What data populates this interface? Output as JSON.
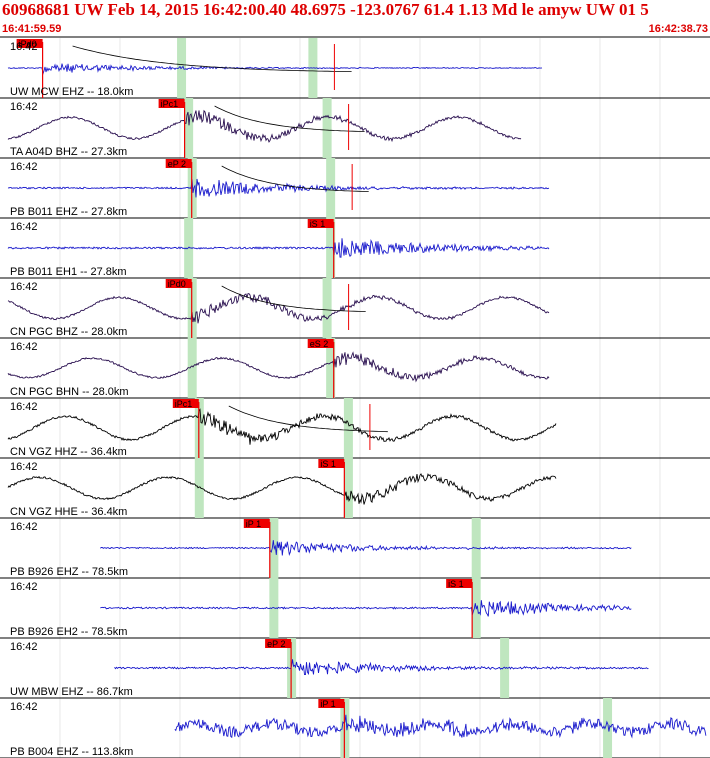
{
  "header": {
    "title": "60968681 UW Feb 14, 2015 16:42:00.40   48.6975 -123.0767 61.4 1.13 Md le amyw UW 01   5",
    "time_start": "16:41:59.59",
    "time_end": "16:42:38.73"
  },
  "colors": {
    "header_text": "#dd0000",
    "pick_box": "#ee0000",
    "pick_band": "#bfe6bf",
    "coda_line": "#000000"
  },
  "traces": [
    {
      "time_label": "16:42",
      "station": "UW MCW EHZ -- 18.0km",
      "pick_label": "iPd0",
      "color": "#1a1acc",
      "amp": 0.18,
      "style": "burst",
      "pick": 0.06,
      "start": 0.0,
      "end": 0.77,
      "bands": [
        0.255,
        0.44
      ],
      "coda": true
    },
    {
      "time_label": "16:42",
      "station": "TA A04D BHZ -- 27.3km",
      "pick_label": "iPc1",
      "color": "#2a1050",
      "amp": 0.55,
      "style": "wave",
      "pick": 0.26,
      "start": 0.0,
      "end": 0.74,
      "bands": [
        0.265,
        0.46
      ],
      "coda": true
    },
    {
      "time_label": "16:42",
      "station": "PB B011 EHZ -- 27.8km",
      "pick_label": "eP 2",
      "color": "#1a1acc",
      "amp": 0.3,
      "style": "burst",
      "pick": 0.27,
      "start": 0.0,
      "end": 0.78,
      "bands": [
        0.27,
        0.465
      ],
      "coda": true
    },
    {
      "time_label": "16:42",
      "station": "PB B011 EH1 -- 27.8km",
      "pick_label": "iS 1",
      "color": "#1a1acc",
      "amp": 0.35,
      "style": "burst",
      "pick": 0.47,
      "start": 0.0,
      "end": 0.78,
      "bands": [
        0.265,
        0.465
      ],
      "coda": false
    },
    {
      "time_label": "16:42",
      "station": "CN PGC BHZ -- 28.0km",
      "pick_label": "iPd0",
      "color": "#2a1050",
      "amp": 0.55,
      "style": "wave",
      "pick": 0.27,
      "start": 0.0,
      "end": 0.78,
      "bands": [
        0.27,
        0.46
      ],
      "coda": true
    },
    {
      "time_label": "16:42",
      "station": "CN PGC BHN -- 28.0km",
      "pick_label": "eS 2",
      "color": "#2a1050",
      "amp": 0.5,
      "style": "wave",
      "pick": 0.47,
      "start": 0.0,
      "end": 0.78,
      "bands": [
        0.27,
        0.465
      ],
      "coda": false
    },
    {
      "time_label": "16:42",
      "station": "CN VGZ HHZ -- 36.4km",
      "pick_label": "iPc1",
      "color": "#000000",
      "amp": 0.6,
      "style": "wave",
      "pick": 0.28,
      "start": 0.0,
      "end": 0.79,
      "bands": [
        0.28,
        0.49
      ],
      "coda": true
    },
    {
      "time_label": "16:42",
      "station": "CN VGZ HHE -- 36.4km",
      "pick_label": "iS 1",
      "color": "#000000",
      "amp": 0.55,
      "style": "wave",
      "pick": 0.485,
      "start": 0.0,
      "end": 0.79,
      "bands": [
        0.28,
        0.49
      ],
      "coda": false
    },
    {
      "time_label": "16:42",
      "station": "PB B926 EHZ -- 78.5km",
      "pick_label": "iP 1",
      "color": "#1a1acc",
      "amp": 0.25,
      "style": "burst",
      "pick": 0.38,
      "start": 0.13,
      "end": 0.895,
      "bands": [
        0.385,
        0.67
      ],
      "coda": false
    },
    {
      "time_label": "16:42",
      "station": "PB B926 EH2 -- 78.5km",
      "pick_label": "iS 1",
      "color": "#1a1acc",
      "amp": 0.3,
      "style": "burst",
      "pick": 0.665,
      "start": 0.13,
      "end": 0.895,
      "bands": [
        0.385,
        0.67
      ],
      "coda": false
    },
    {
      "time_label": "16:42",
      "station": "UW MBW EHZ -- 86.7km",
      "pick_label": "eP 2",
      "color": "#1a1acc",
      "amp": 0.3,
      "style": "burst",
      "pick": 0.41,
      "start": 0.15,
      "end": 0.92,
      "bands": [
        0.41,
        0.71
      ],
      "coda": false
    },
    {
      "time_label": "16:42",
      "station": "PB B004 EHZ -- 113.8km",
      "pick_label": "iP 1",
      "color": "#1a1acc",
      "amp": 0.4,
      "style": "noise",
      "pick": 0.485,
      "start": 0.235,
      "end": 1.0,
      "bands": [
        0.485,
        0.855
      ],
      "coda": false
    }
  ]
}
